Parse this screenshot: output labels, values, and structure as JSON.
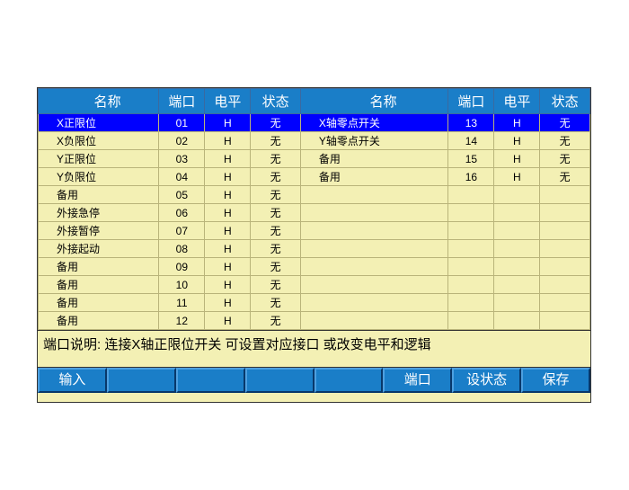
{
  "headers": {
    "name": "名称",
    "port": "端口",
    "level": "电平",
    "state": "状态"
  },
  "left_rows": [
    {
      "name": "X正限位",
      "port": "01",
      "level": "H",
      "state": "无",
      "selected": true
    },
    {
      "name": "X负限位",
      "port": "02",
      "level": "H",
      "state": "无"
    },
    {
      "name": "Y正限位",
      "port": "03",
      "level": "H",
      "state": "无"
    },
    {
      "name": "Y负限位",
      "port": "04",
      "level": "H",
      "state": "无"
    },
    {
      "name": "备用",
      "port": "05",
      "level": "H",
      "state": "无"
    },
    {
      "name": "外接急停",
      "port": "06",
      "level": "H",
      "state": "无"
    },
    {
      "name": "外接暂停",
      "port": "07",
      "level": "H",
      "state": "无"
    },
    {
      "name": "外接起动",
      "port": "08",
      "level": "H",
      "state": "无"
    },
    {
      "name": "备用",
      "port": "09",
      "level": "H",
      "state": "无"
    },
    {
      "name": "备用",
      "port": "10",
      "level": "H",
      "state": "无"
    },
    {
      "name": "备用",
      "port": "11",
      "level": "H",
      "state": "无"
    },
    {
      "name": "备用",
      "port": "12",
      "level": "H",
      "state": "无"
    }
  ],
  "right_rows": [
    {
      "name": "X轴零点开关",
      "port": "13",
      "level": "H",
      "state": "无"
    },
    {
      "name": "Y轴零点开关",
      "port": "14",
      "level": "H",
      "state": "无"
    },
    {
      "name": "备用",
      "port": "15",
      "level": "H",
      "state": "无"
    },
    {
      "name": "备用",
      "port": "16",
      "level": "H",
      "state": "无"
    },
    {
      "name": "",
      "port": "",
      "level": "",
      "state": ""
    },
    {
      "name": "",
      "port": "",
      "level": "",
      "state": ""
    },
    {
      "name": "",
      "port": "",
      "level": "",
      "state": ""
    },
    {
      "name": "",
      "port": "",
      "level": "",
      "state": ""
    },
    {
      "name": "",
      "port": "",
      "level": "",
      "state": ""
    },
    {
      "name": "",
      "port": "",
      "level": "",
      "state": ""
    },
    {
      "name": "",
      "port": "",
      "level": "",
      "state": ""
    },
    {
      "name": "",
      "port": "",
      "level": "",
      "state": ""
    }
  ],
  "description": "端口说明: 连接X轴正限位开关  可设置对应接口  或改变电平和逻辑",
  "toolbar": {
    "input": "输入",
    "port": "端口",
    "setstate": "设状态",
    "save": "保存"
  },
  "colors": {
    "header_bg": "#1a7ec8",
    "body_bg": "#f3f0b4",
    "select_bg": "#0000ff"
  }
}
